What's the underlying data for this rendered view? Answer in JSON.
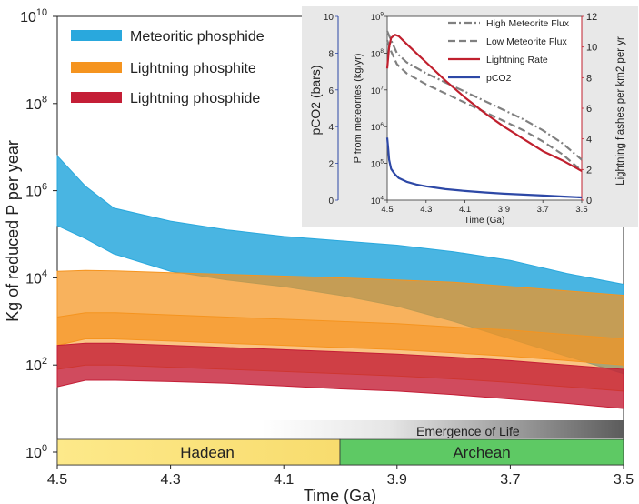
{
  "chart_data": {
    "type": "area",
    "ylabel": "Kg of reduced P per year",
    "xlabel": "Time (Ga)",
    "xlim": [
      4.5,
      3.5
    ],
    "ylim_log10": [
      0,
      10
    ],
    "x_ticks": [
      "4.5",
      "4.3",
      "4.1",
      "3.9",
      "3.7",
      "3.5"
    ],
    "y_ticks": [
      {
        "base": "10",
        "exp": "0"
      },
      {
        "base": "10",
        "exp": "2"
      },
      {
        "base": "10",
        "exp": "4"
      },
      {
        "base": "10",
        "exp": "6"
      },
      {
        "base": "10",
        "exp": "8"
      },
      {
        "base": "10",
        "exp": "10"
      }
    ],
    "legend": [
      {
        "label": "Meteoritic phosphide",
        "color": "#29a8dd"
      },
      {
        "label": "Lightning phosphite",
        "color": "#f5941f"
      },
      {
        "label": "Lightning phosphide",
        "color": "#c41e36"
      }
    ],
    "series": [
      {
        "name": "Meteoritic phosphide",
        "color": "#29a8dd",
        "x": [
          4.5,
          4.45,
          4.4,
          4.3,
          4.2,
          4.1,
          4.0,
          3.9,
          3.8,
          3.7,
          3.6,
          3.5
        ],
        "upper_log10": [
          6.8,
          6.1,
          5.6,
          5.3,
          5.1,
          4.95,
          4.85,
          4.75,
          4.6,
          4.4,
          4.1,
          3.85
        ],
        "lower_log10": [
          5.2,
          4.9,
          4.55,
          4.15,
          3.95,
          3.8,
          3.6,
          3.35,
          3.0,
          2.6,
          2.2,
          1.8
        ]
      },
      {
        "name": "Lightning phosphite (upper band)",
        "color": "#f5941f",
        "x": [
          4.5,
          4.45,
          4.4,
          4.3,
          4.2,
          4.1,
          4.0,
          3.9,
          3.8,
          3.7,
          3.6,
          3.5
        ],
        "upper_log10": [
          4.15,
          4.17,
          4.16,
          4.12,
          4.08,
          4.04,
          4.0,
          3.95,
          3.9,
          3.8,
          3.7,
          3.6
        ],
        "lower_log10": [
          2.45,
          2.6,
          2.6,
          2.55,
          2.5,
          2.45,
          2.4,
          2.35,
          2.28,
          2.2,
          2.1,
          2.0
        ]
      },
      {
        "name": "Lightning phosphite (lower band)",
        "color": "#f5941f",
        "x": [
          4.5,
          4.45,
          4.4,
          4.3,
          4.2,
          4.1,
          4.0,
          3.9,
          3.8,
          3.7,
          3.6,
          3.5
        ],
        "upper_log10": [
          3.1,
          3.2,
          3.2,
          3.15,
          3.1,
          3.05,
          3.0,
          2.95,
          2.87,
          2.8,
          2.7,
          2.6
        ],
        "lower_log10": [
          1.9,
          2.0,
          2.0,
          1.95,
          1.9,
          1.85,
          1.8,
          1.75,
          1.68,
          1.6,
          1.5,
          1.4
        ]
      },
      {
        "name": "Lightning phosphide",
        "color": "#c41e36",
        "x": [
          4.5,
          4.45,
          4.4,
          4.3,
          4.2,
          4.1,
          4.0,
          3.9,
          3.8,
          3.7,
          3.6,
          3.5
        ],
        "upper_log10": [
          2.45,
          2.5,
          2.5,
          2.45,
          2.4,
          2.35,
          2.3,
          2.25,
          2.18,
          2.1,
          2.0,
          1.9
        ],
        "lower_log10": [
          1.5,
          1.65,
          1.65,
          1.62,
          1.58,
          1.52,
          1.45,
          1.4,
          1.32,
          1.22,
          1.12,
          1.0
        ]
      }
    ],
    "emergence_label": "Emergence of Life",
    "eons": [
      {
        "label": "Hadean",
        "from": 4.5,
        "to": 4.0,
        "color": "#fce57a"
      },
      {
        "label": "Archean",
        "from": 4.0,
        "to": 3.5,
        "color": "#5ec964"
      }
    ],
    "inset": {
      "xlabel": "Time (Ga)",
      "xlim": [
        4.5,
        3.5
      ],
      "x_ticks": [
        "4.5",
        "4.3",
        "4.1",
        "3.9",
        "3.7",
        "3.5"
      ],
      "left_label": "P from meteorites (kg/yr)",
      "left_ylim_log10": [
        4,
        9
      ],
      "left_ticks": [
        {
          "base": "10",
          "exp": "4"
        },
        {
          "base": "10",
          "exp": "5"
        },
        {
          "base": "10",
          "exp": "6"
        },
        {
          "base": "10",
          "exp": "7"
        },
        {
          "base": "10",
          "exp": "8"
        },
        {
          "base": "10",
          "exp": "9"
        }
      ],
      "pco2_label": "pCO2 (bars)",
      "pco2_ylim": [
        0,
        10
      ],
      "pco2_ticks": [
        "0",
        "2",
        "4",
        "6",
        "8",
        "10"
      ],
      "right_label": "Lightning flashes per km2 per yr",
      "right_ylim": [
        0,
        12
      ],
      "right_ticks": [
        "0",
        "2",
        "4",
        "6",
        "8",
        "10",
        "12"
      ],
      "legend": [
        {
          "label": "High Meteorite Flux",
          "color": "#808080",
          "dash": "dashdot"
        },
        {
          "label": "Low Meteorite Flux",
          "color": "#808080",
          "dash": "dashed"
        },
        {
          "label": "Lightning Rate",
          "color": "#c0202e",
          "dash": "solid"
        },
        {
          "label": "pCO2",
          "color": "#2d48a6",
          "dash": "solid"
        }
      ],
      "series": [
        {
          "name": "High Meteorite Flux",
          "axis": "left",
          "x": [
            4.5,
            4.48,
            4.45,
            4.4,
            4.3,
            4.2,
            4.1,
            4.0,
            3.9,
            3.8,
            3.7,
            3.6,
            3.5
          ],
          "y": [
            8.6,
            8.35,
            8.0,
            7.75,
            7.45,
            7.2,
            6.95,
            6.7,
            6.45,
            6.2,
            5.9,
            5.55,
            5.1
          ]
        },
        {
          "name": "Low Meteorite Flux",
          "axis": "left",
          "x": [
            4.5,
            4.48,
            4.45,
            4.4,
            4.3,
            4.2,
            4.1,
            4.0,
            3.9,
            3.8,
            3.7,
            3.6,
            3.5
          ],
          "y": [
            8.35,
            8.05,
            7.7,
            7.45,
            7.15,
            6.9,
            6.65,
            6.4,
            6.15,
            5.9,
            5.6,
            5.25,
            4.8
          ]
        },
        {
          "name": "Lightning Rate",
          "axis": "right",
          "x": [
            4.5,
            4.49,
            4.48,
            4.46,
            4.44,
            4.4,
            4.35,
            4.3,
            4.2,
            4.1,
            4.0,
            3.9,
            3.8,
            3.7,
            3.6,
            3.5
          ],
          "y": [
            8.6,
            10.0,
            10.6,
            10.8,
            10.7,
            10.2,
            9.6,
            9.0,
            7.8,
            6.7,
            5.7,
            4.8,
            4.0,
            3.2,
            2.6,
            1.9
          ]
        },
        {
          "name": "pCO2",
          "axis": "pco2",
          "x": [
            4.5,
            4.495,
            4.49,
            4.48,
            4.46,
            4.44,
            4.4,
            4.35,
            4.3,
            4.2,
            4.1,
            4.0,
            3.9,
            3.8,
            3.7,
            3.6,
            3.5
          ],
          "y": [
            3.4,
            2.8,
            2.2,
            1.7,
            1.4,
            1.2,
            1.0,
            0.85,
            0.75,
            0.6,
            0.5,
            0.42,
            0.35,
            0.3,
            0.25,
            0.2,
            0.15
          ]
        }
      ]
    }
  }
}
